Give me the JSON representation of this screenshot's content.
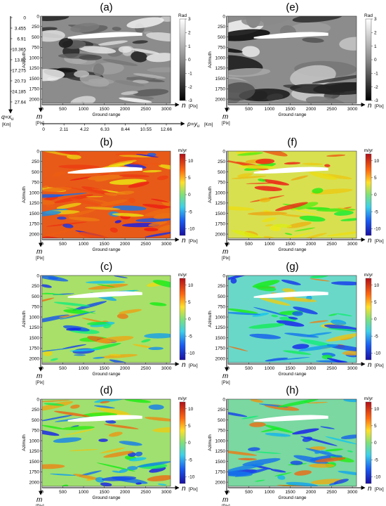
{
  "figure": {
    "axis_labels": {
      "x": "Ground range",
      "y": "Azimuth",
      "x_var": "n",
      "x_unit": "[Pix]",
      "y_var": "m",
      "y_unit": "[Pix]"
    },
    "phase_colorbar": {
      "unit": "Rad",
      "ticks": [
        "3",
        "2",
        "1",
        "0",
        "-1",
        "-2",
        "-3"
      ]
    },
    "velocity_colorbar": {
      "unit": "m/yr",
      "ticks": [
        "10",
        "5",
        "0",
        "-5",
        "-10"
      ]
    },
    "km_axes": {
      "q_label": "q=x",
      "q_sub": "u",
      "q_unit": "[Km]",
      "q_ticks": [
        "0",
        "3.455",
        "6.91",
        "10.365",
        "13.82",
        "17.275",
        "20.73",
        "24.185",
        "27.64"
      ],
      "p_label": "p=y",
      "p_sub": "u",
      "p_unit": "[Km]",
      "p_ticks": [
        "0",
        "2.11",
        "4.22",
        "6.33",
        "8.44",
        "10.55",
        "12.66"
      ]
    },
    "colors": {
      "phase_dark": "#000000",
      "phase_light": "#ffffff",
      "velocity_low": "#1a0fd0",
      "velocity_mid": "#56e05a",
      "velocity_high": "#c0101a"
    }
  },
  "chart_data": [
    {
      "panel": "(a)",
      "type": "heatmap",
      "quantity": "phase",
      "colorbar_unit": "Rad",
      "clim": [
        -3,
        3
      ],
      "x_ticks": [
        0,
        500,
        1000,
        1500,
        2000,
        2500,
        3000
      ],
      "y_ticks": [
        0,
        250,
        500,
        750,
        1000,
        1250,
        1500,
        1750,
        2000
      ],
      "xlim": [
        0,
        3100
      ],
      "ylim": [
        2100,
        0
      ],
      "xlabel": "Ground range",
      "ylabel": "Azimuth"
    },
    {
      "panel": "(e)",
      "type": "heatmap",
      "quantity": "phase",
      "colorbar_unit": "Rad",
      "clim": [
        -3,
        3
      ],
      "x_ticks": [
        0,
        500,
        1000,
        1500,
        2000,
        2500,
        3000
      ],
      "y_ticks": [
        0,
        250,
        500,
        750,
        1000,
        1250,
        1500,
        1750,
        2000
      ],
      "xlim": [
        0,
        3100
      ],
      "ylim": [
        2100,
        0
      ],
      "xlabel": "Ground range",
      "ylabel": "Azimuth"
    },
    {
      "panel": "(b)",
      "type": "heatmap",
      "quantity": "velocity",
      "colorbar_unit": "m/yr",
      "clim": [
        -12,
        12
      ],
      "x_ticks": [
        0,
        500,
        1000,
        1500,
        2000,
        2500,
        3000
      ],
      "y_ticks": [
        0,
        250,
        500,
        750,
        1000,
        1250,
        1500,
        1750,
        2000
      ],
      "xlim": [
        0,
        3100
      ],
      "ylim": [
        2100,
        0
      ],
      "xlabel": "Ground range",
      "ylabel": "Azimuth"
    },
    {
      "panel": "(f)",
      "type": "heatmap",
      "quantity": "velocity",
      "colorbar_unit": "m/yr",
      "clim": [
        -12,
        12
      ],
      "x_ticks": [
        0,
        500,
        1000,
        1500,
        2000,
        2500,
        3000
      ],
      "y_ticks": [
        0,
        250,
        500,
        750,
        1000,
        1250,
        1500,
        1750,
        2000
      ],
      "xlim": [
        0,
        3100
      ],
      "ylim": [
        2100,
        0
      ],
      "xlabel": "Ground range",
      "ylabel": "Azimuth"
    },
    {
      "panel": "(c)",
      "type": "heatmap",
      "quantity": "velocity",
      "colorbar_unit": "m/yr",
      "clim": [
        -12,
        12
      ],
      "x_ticks": [
        0,
        500,
        1000,
        1500,
        2000,
        2500,
        3000
      ],
      "y_ticks": [
        0,
        250,
        500,
        750,
        1000,
        1250,
        1500,
        1750,
        2000
      ],
      "xlim": [
        0,
        3100
      ],
      "ylim": [
        2100,
        0
      ],
      "xlabel": "Ground range",
      "ylabel": "Azimuth"
    },
    {
      "panel": "(g)",
      "type": "heatmap",
      "quantity": "velocity",
      "colorbar_unit": "m/yr",
      "clim": [
        -12,
        12
      ],
      "x_ticks": [
        0,
        500,
        1000,
        1500,
        2000,
        2500,
        3000
      ],
      "y_ticks": [
        0,
        250,
        500,
        750,
        1000,
        1250,
        1500,
        1750,
        2000
      ],
      "xlim": [
        0,
        3100
      ],
      "ylim": [
        2100,
        0
      ],
      "xlabel": "Ground range",
      "ylabel": "Azimuth"
    },
    {
      "panel": "(d)",
      "type": "heatmap",
      "quantity": "velocity",
      "colorbar_unit": "m/yr",
      "clim": [
        -12,
        12
      ],
      "x_ticks": [
        0,
        500,
        1000,
        1500,
        2000,
        2500,
        3000
      ],
      "y_ticks": [
        0,
        250,
        500,
        750,
        1000,
        1250,
        1500,
        1750,
        2000
      ],
      "xlim": [
        0,
        3100
      ],
      "ylim": [
        2100,
        0
      ],
      "xlabel": "Ground range",
      "ylabel": "Azimuth"
    },
    {
      "panel": "(h)",
      "type": "heatmap",
      "quantity": "velocity",
      "colorbar_unit": "m/yr",
      "clim": [
        -12,
        12
      ],
      "x_ticks": [
        0,
        500,
        1000,
        1500,
        2000,
        2500,
        3000
      ],
      "y_ticks": [
        0,
        250,
        500,
        750,
        1000,
        1250,
        1500,
        1750,
        2000
      ],
      "xlim": [
        0,
        3100
      ],
      "ylim": [
        2100,
        0
      ],
      "xlabel": "Ground range",
      "ylabel": "Azimuth"
    }
  ]
}
